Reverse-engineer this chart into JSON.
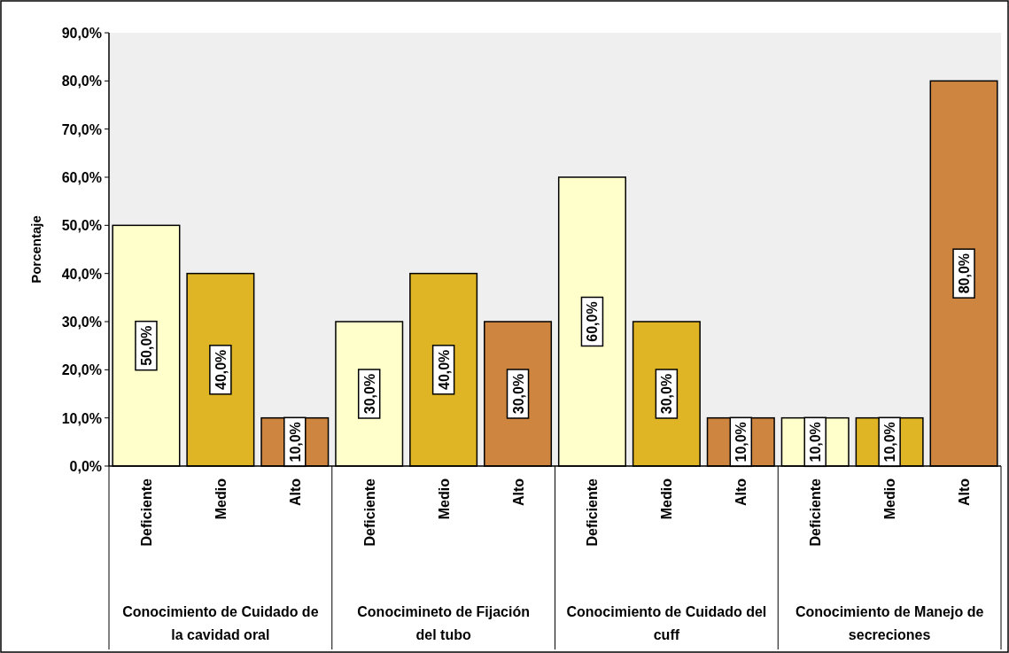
{
  "chart_data": {
    "type": "bar",
    "ylabel": "Porcentaje",
    "categories": [
      "Deficiente",
      "Medio",
      "Alto",
      "Deficiente",
      "Medio",
      "Alto",
      "Deficiente",
      "Medio",
      "Alto",
      "Deficiente",
      "Medio",
      "Alto"
    ],
    "values": [
      50,
      40,
      10,
      30,
      40,
      30,
      60,
      30,
      10,
      10,
      10,
      80
    ],
    "colors": [
      "#ffffcc",
      "#dfb526",
      "#cd853f",
      "#ffffcc",
      "#dfb526",
      "#cd853f",
      "#ffffcc",
      "#dfb526",
      "#cd853f",
      "#ffffcc",
      "#dfb526",
      "#cd853f"
    ],
    "value_labels": [
      "50,0%",
      "40,0%",
      "10,0%",
      "30,0%",
      "40,0%",
      "30,0%",
      "60,0%",
      "30,0%",
      "10,0%",
      "10,0%",
      "10,0%",
      "80,0%"
    ],
    "annotations": [
      "Conocimiento de Cuidado de la cavidad oral",
      "Conocimineto de Fijación del tubo",
      "Conocimiento de Cuidado del cuff",
      "Conocimiento de Manejo de secreciones"
    ],
    "ylim": [
      0,
      90
    ],
    "yticks": [
      {
        "value": 0,
        "label": "0,0%"
      },
      {
        "value": 10,
        "label": "10,0%"
      },
      {
        "value": 20,
        "label": "20,0%"
      },
      {
        "value": 30,
        "label": "30,0%"
      },
      {
        "value": 40,
        "label": "40,0%"
      },
      {
        "value": 50,
        "label": "50,0%"
      },
      {
        "value": 60,
        "label": "60,0%"
      },
      {
        "value": 70,
        "label": "70,0%"
      },
      {
        "value": 80,
        "label": "80,0%"
      },
      {
        "value": 90,
        "label": "90,0%"
      }
    ],
    "grid": false
  }
}
